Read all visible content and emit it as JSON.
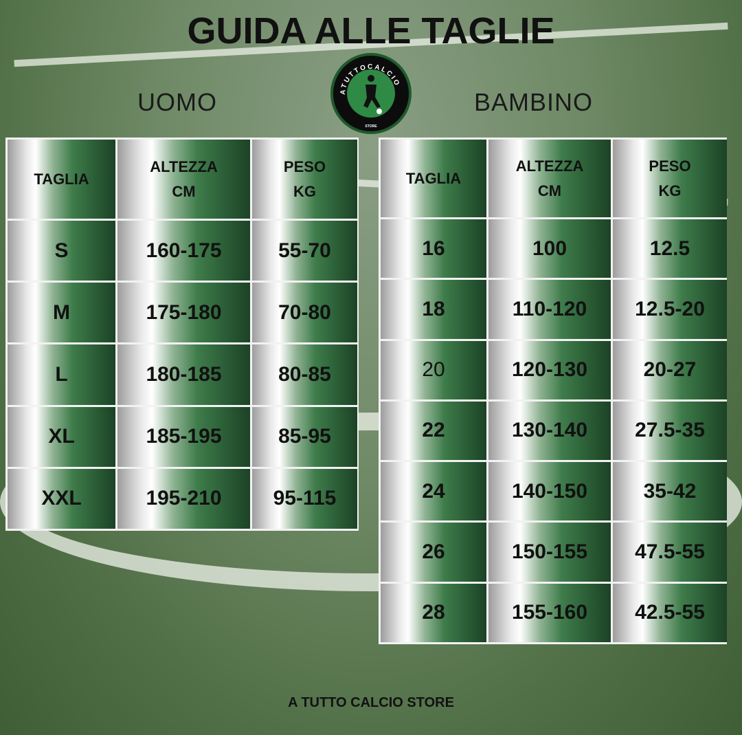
{
  "title": "GUIDA ALLE TAGLIE",
  "logo": {
    "text_top": "ATUTTOCALCIO",
    "text_bottom": "STORE",
    "colors": {
      "ring": "#0c0c0c",
      "inner": "#2e8a45"
    }
  },
  "uomo": {
    "label": "UOMO",
    "headers": [
      "TAGLIA",
      "ALTEZZA\nCM",
      "PESO\nKG"
    ],
    "rows": [
      [
        "S",
        "160-175",
        "55-70"
      ],
      [
        "M",
        "175-180",
        "70-80"
      ],
      [
        "L",
        "180-185",
        "80-85"
      ],
      [
        "XL",
        "185-195",
        "85-95"
      ],
      [
        "XXL",
        "195-210",
        "95-115"
      ]
    ]
  },
  "bambino": {
    "label": "BAMBINO",
    "headers": [
      "TAGLIA",
      "ALTEZZA\nCM",
      "PESO\nKG"
    ],
    "rows": [
      [
        "16",
        "100",
        "12.5"
      ],
      [
        "18",
        "110-120",
        "12.5-20"
      ],
      [
        "20",
        "120-130",
        "20-27"
      ],
      [
        "22",
        "130-140",
        "27.5-35"
      ],
      [
        "24",
        "140-150",
        "35-42"
      ],
      [
        "26",
        "150-155",
        "47.5-55"
      ],
      [
        "28",
        "155-160",
        "42.5-55"
      ]
    ]
  },
  "footer": "A TUTTO CALCIO STORE"
}
